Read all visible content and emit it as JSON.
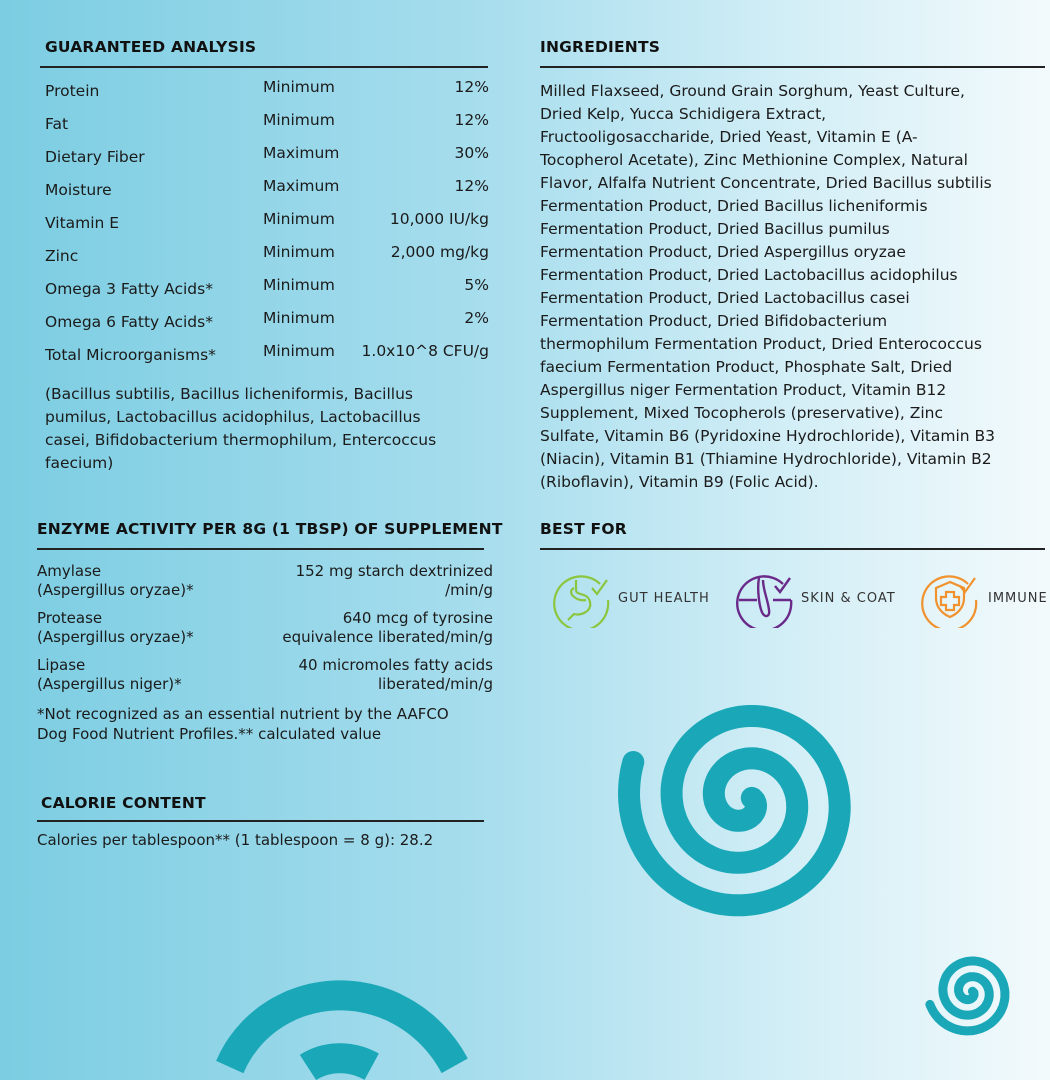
{
  "guaranteed_analysis": {
    "title": "GUARANTEED ANALYSIS",
    "rows": [
      {
        "name": "Protein",
        "basis": "Minimum",
        "value": "12%"
      },
      {
        "name": "Fat",
        "basis": "Minimum",
        "value": "12%"
      },
      {
        "name": "Dietary Fiber",
        "basis": "Maximum",
        "value": "30%"
      },
      {
        "name": "Moisture",
        "basis": "Maximum",
        "value": "12%"
      },
      {
        "name": "Vitamin E",
        "basis": "Minimum",
        "value": "10,000 IU/kg"
      },
      {
        "name": "Zinc",
        "basis": "Minimum",
        "value": "2,000 mg/kg"
      },
      {
        "name": "Omega 3 Fatty Acids*",
        "basis": "Minimum",
        "value": "5%"
      },
      {
        "name": "Omega 6 Fatty Acids*",
        "basis": "Minimum",
        "value": "2%"
      },
      {
        "name": "Total Microorganisms*",
        "basis": "Minimum",
        "value": "1.0x10^8 CFU/g"
      }
    ],
    "note_lines": [
      "(Bacillus subtilis, Bacillus licheniformis, Bacillus",
      "pumilus, Lactobacillus acidophilus, Lactobacillus",
      "casei, Bifidobacterium thermophilum, Entercoccus",
      "faecium)"
    ]
  },
  "enzyme": {
    "title": "ENZYME ACTIVITY PER 8G (1 TBSP) OF SUPPLEMENT",
    "rows": [
      {
        "name": [
          "Amylase",
          "(Aspergillus oryzae)*"
        ],
        "value": [
          "152 mg starch dextrinized",
          "/min/g"
        ]
      },
      {
        "name": [
          "Protease",
          "(Aspergillus oryzae)*"
        ],
        "value": [
          "640 mcg of tyrosine",
          "equivalence liberated/min/g"
        ]
      },
      {
        "name": [
          "Lipase",
          "(Aspergillus niger)*"
        ],
        "value": [
          "40 micromoles fatty acids",
          "liberated/min/g"
        ]
      }
    ],
    "footnote_lines": [
      "*Not recognized as an essential nutrient by the AAFCO",
      "Dog Food Nutrient Profiles.** calculated value"
    ]
  },
  "calorie": {
    "title": "CALORIE CONTENT",
    "text": "Calories per tablespoon** (1 tablespoon = 8 g): 28.2"
  },
  "ingredients": {
    "title": "INGREDIENTS",
    "lines": [
      "Milled Flaxseed, Ground Grain Sorghum, Yeast Culture,",
      "Dried Kelp, Yucca Schidigera Extract,",
      "Fructooligosaccharide, Dried Yeast, Vitamin E (A-",
      "Tocopherol Acetate), Zinc Methionine Complex, Natural",
      "Flavor, Alfalfa Nutrient Concentrate, Dried Bacillus subtilis",
      "Fermentation Product, Dried Bacillus licheniformis",
      "Fermentation Product, Dried Bacillus pumilus",
      "Fermentation Product, Dried Aspergillus oryzae",
      "Fermentation Product, Dried Lactobacillus acidophilus",
      "Fermentation Product, Dried Lactobacillus casei",
      "Fermentation Product, Dried Bifidobacterium",
      "thermophilum Fermentation Product, Dried Enterococcus",
      "faecium Fermentation Product, Phosphate Salt, Dried",
      "Aspergillus niger Fermentation Product, Vitamin B12",
      "Supplement, Mixed Tocopherols (preservative), Zinc",
      "Sulfate, Vitamin B6 (Pyridoxine Hydrochloride), Vitamin B3",
      "(Niacin), Vitamin B1 (Thiamine Hydrochloride), Vitamin B2",
      "(Riboflavin), Vitamin B9 (Folic Acid)."
    ]
  },
  "best_for": {
    "title": "BEST FOR",
    "items": [
      {
        "label": "GUT HEALTH",
        "icon": "stomach-check-icon",
        "color": "#8cc63f"
      },
      {
        "label": "SKIN & COAT",
        "icon": "hair-follicle-check-icon",
        "color": "#6a2a8a"
      },
      {
        "label": "IMMUNE",
        "icon": "shield-cross-check-icon",
        "color": "#f0922e"
      }
    ]
  },
  "colors": {
    "spiral": "#1aa8b8"
  }
}
